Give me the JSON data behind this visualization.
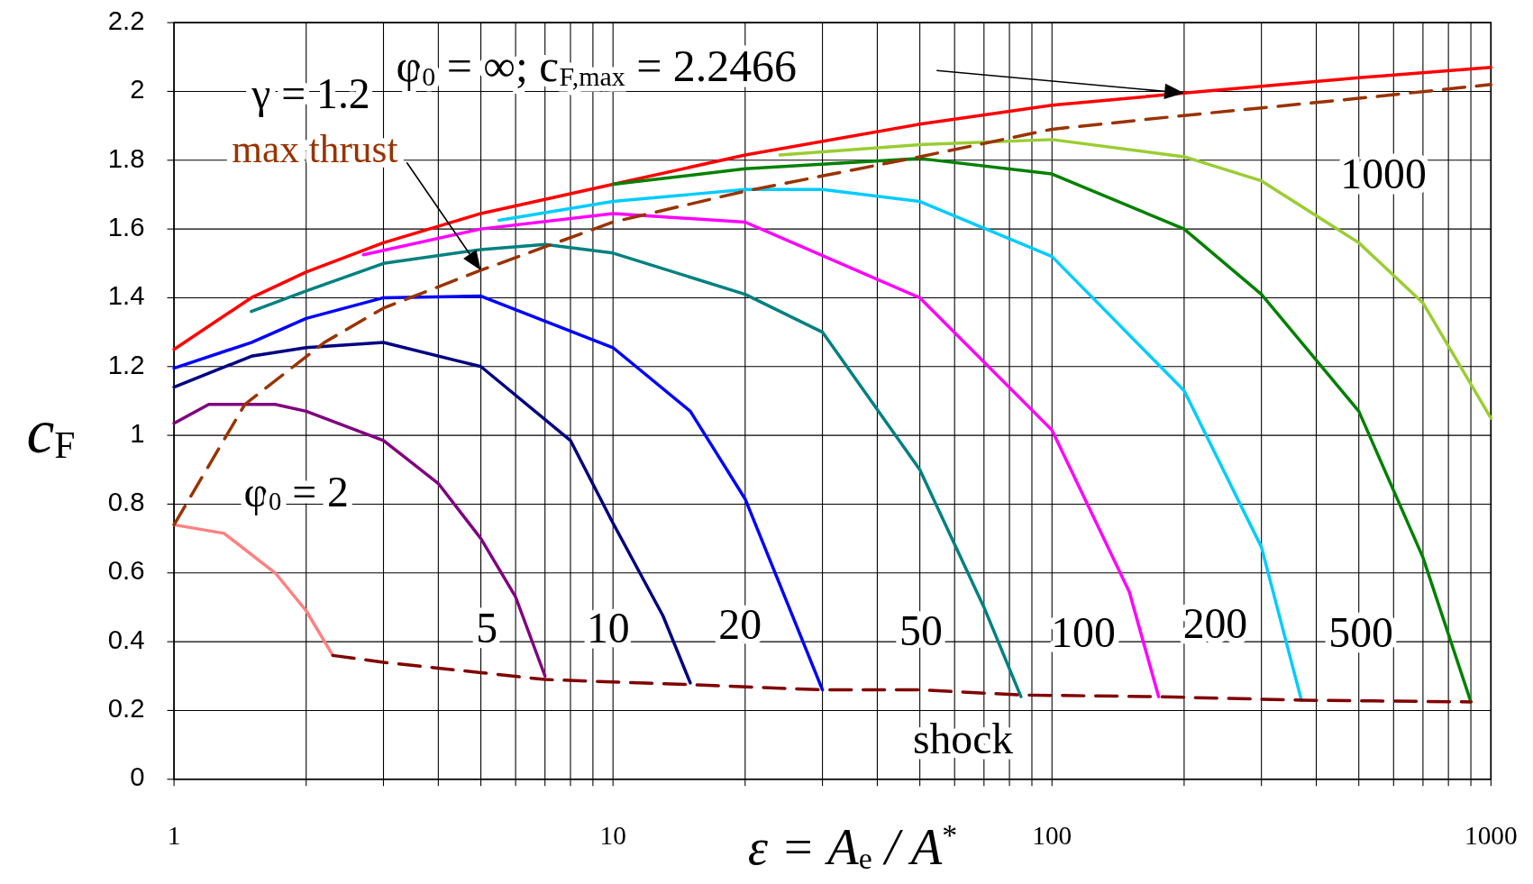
{
  "chart_data": {
    "type": "line",
    "xlabel": "ε = A$_{e}$ / A$^{*}$",
    "ylabel": "c$_{F}$",
    "log": "x",
    "xlim": [
      1,
      1000
    ],
    "ylim": [
      0,
      2.2
    ],
    "xticks": [
      1,
      {
        "value": 2,
        "label": null
      },
      {
        "value": 3,
        "label": null
      },
      {
        "value": 4,
        "label": null
      },
      {
        "value": 5,
        "label": null
      },
      {
        "value": 6,
        "label": null
      },
      {
        "value": 7,
        "label": null
      },
      {
        "value": 8,
        "label": null
      },
      {
        "value": 9,
        "label": null
      },
      10,
      {
        "value": 20,
        "label": null
      },
      {
        "value": 30,
        "label": null
      },
      {
        "value": 40,
        "label": null
      },
      {
        "value": 50,
        "label": null
      },
      {
        "value": 60,
        "label": null
      },
      {
        "value": 70,
        "label": null
      },
      {
        "value": 80,
        "label": null
      },
      {
        "value": 90,
        "label": null
      },
      100,
      {
        "value": 200,
        "label": null
      },
      {
        "value": 300,
        "label": null
      },
      {
        "value": 400,
        "label": null
      },
      {
        "value": 500,
        "label": null
      },
      {
        "value": 600,
        "label": null
      },
      {
        "value": 700,
        "label": null
      },
      {
        "value": 800,
        "label": null
      },
      {
        "value": 900,
        "label": null
      },
      1000
    ],
    "yticks": [
      0,
      0.2,
      0.4,
      0.6,
      0.8,
      1,
      1.2,
      1.4,
      1.6,
      1.8,
      2,
      2.2
    ],
    "grid": true,
    "marker": "none",
    "line_style": "solid",
    "series": [
      {
        "name": "φ$_{0}$ = ∞;  c$_{F,max}$ = 2.2466",
        "color": "#ff0000",
        "x": [
          1,
          1.5,
          2,
          3,
          5,
          10,
          20,
          50,
          100,
          200,
          500,
          1000
        ],
        "values": [
          1.25,
          1.4,
          1.475,
          1.56,
          1.645,
          1.73,
          1.815,
          1.905,
          1.96,
          1.995,
          2.04,
          2.07
        ]
      },
      {
        "name": "1000",
        "color": "#9acd32",
        "x": [
          24,
          50,
          100,
          200,
          300,
          500,
          700,
          1000
        ],
        "values": [
          1.815,
          1.845,
          1.86,
          1.81,
          1.74,
          1.56,
          1.385,
          1.05
        ]
      },
      {
        "name": "500",
        "color": "#008000",
        "x": [
          10,
          20,
          50,
          100,
          200,
          300,
          500,
          700,
          900
        ],
        "values": [
          1.73,
          1.775,
          1.805,
          1.76,
          1.6,
          1.41,
          1.07,
          0.645,
          0.225
        ]
      },
      {
        "name": "200",
        "color": "#00ccff",
        "x": [
          5.5,
          10,
          20,
          30,
          50,
          100,
          200,
          300,
          370
        ],
        "values": [
          1.625,
          1.68,
          1.715,
          1.715,
          1.68,
          1.52,
          1.13,
          0.675,
          0.23
        ]
      },
      {
        "name": "100",
        "color": "#ff00ff",
        "x": [
          2.7,
          5,
          10,
          20,
          50,
          100,
          150,
          175
        ],
        "values": [
          1.525,
          1.6,
          1.645,
          1.62,
          1.4,
          1.015,
          0.545,
          0.24
        ]
      },
      {
        "name": "50",
        "color": "#008080",
        "x": [
          1.5,
          2,
          3,
          5,
          7,
          10,
          20,
          30,
          50,
          70,
          85
        ],
        "values": [
          1.36,
          1.42,
          1.5,
          1.54,
          1.555,
          1.53,
          1.41,
          1.3,
          0.9,
          0.5,
          0.24
        ]
      },
      {
        "name": "20",
        "color": "#0000ff",
        "x": [
          1,
          1.5,
          2,
          3,
          5,
          10,
          15,
          20,
          30
        ],
        "values": [
          1.195,
          1.27,
          1.34,
          1.4,
          1.405,
          1.255,
          1.07,
          0.815,
          0.26
        ]
      },
      {
        "name": "10",
        "color": "#000080",
        "x": [
          1,
          1.5,
          2,
          3,
          5,
          8,
          10,
          13,
          15
        ],
        "values": [
          1.14,
          1.23,
          1.255,
          1.27,
          1.2,
          0.985,
          0.745,
          0.475,
          0.28
        ]
      },
      {
        "name": "5",
        "color": "#800080",
        "x": [
          1,
          1.2,
          1.7,
          2,
          3,
          4,
          5,
          6,
          7
        ],
        "values": [
          1.035,
          1.09,
          1.09,
          1.07,
          0.985,
          0.86,
          0.7,
          0.53,
          0.3
        ]
      },
      {
        "name": "φ$_{0}$ = 2",
        "color": "#ff8080",
        "x": [
          1,
          1.3,
          1.7,
          2,
          2.3
        ],
        "values": [
          0.74,
          0.715,
          0.6,
          0.49,
          0.36
        ]
      },
      {
        "name": "max thrust",
        "color": "#993300",
        "line_style": "dashed",
        "x": [
          1,
          1.45,
          2.2,
          3,
          5,
          10,
          20,
          50,
          100,
          200,
          500,
          1000
        ],
        "values": [
          0.74,
          1.09,
          1.27,
          1.37,
          1.48,
          1.62,
          1.71,
          1.81,
          1.89,
          1.93,
          1.98,
          2.02
        ]
      },
      {
        "name": "shock",
        "color": "#800000",
        "line_style": "dashed",
        "x": [
          2.3,
          3,
          5,
          7,
          15,
          30,
          50,
          85,
          175,
          370,
          900
        ],
        "values": [
          0.36,
          0.34,
          0.31,
          0.29,
          0.275,
          0.26,
          0.26,
          0.245,
          0.24,
          0.23,
          0.225
        ]
      }
    ],
    "annotations": [
      "γ = 1.2"
    ]
  }
}
